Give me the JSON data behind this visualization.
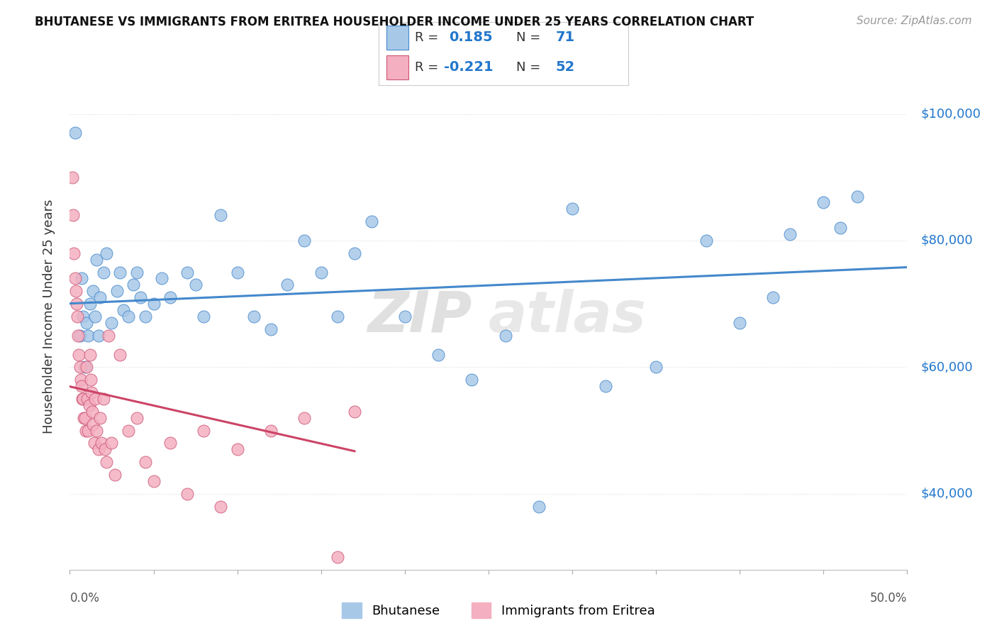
{
  "title": "BHUTANESE VS IMMIGRANTS FROM ERITREA HOUSEHOLDER INCOME UNDER 25 YEARS CORRELATION CHART",
  "source": "Source: ZipAtlas.com",
  "ylabel": "Householder Income Under 25 years",
  "watermark_zip": "ZIP",
  "watermark_atlas": "atlas",
  "xlim": [
    0.0,
    50.0
  ],
  "ylim": [
    28000,
    108000
  ],
  "yticks": [
    40000,
    60000,
    80000,
    100000
  ],
  "ytick_labels": [
    "$40,000",
    "$60,000",
    "$80,000",
    "$100,000"
  ],
  "bhutanese_color": "#a8c8e8",
  "eritrea_color": "#f4afc0",
  "trend_blue": "#4488cc",
  "trend_pink": "#cc4466",
  "trend_pink_dash": "#e8a0b0",
  "bhutanese_R": 0.185,
  "eritrea_R": -0.221,
  "bhutanese_x": [
    0.3,
    0.6,
    0.7,
    0.8,
    0.9,
    1.0,
    1.1,
    1.2,
    1.4,
    1.5,
    1.6,
    1.7,
    1.8,
    2.0,
    2.2,
    2.5,
    2.8,
    3.0,
    3.2,
    3.5,
    3.8,
    4.0,
    4.2,
    4.5,
    5.0,
    5.5,
    6.0,
    7.0,
    7.5,
    8.0,
    9.0,
    10.0,
    11.0,
    12.0,
    13.0,
    14.0,
    15.0,
    16.0,
    17.0,
    18.0,
    20.0,
    22.0,
    24.0,
    26.0,
    28.0,
    30.0,
    32.0,
    35.0,
    38.0,
    40.0,
    42.0,
    43.0,
    45.0,
    46.0,
    47.0
  ],
  "bhutanese_y": [
    97000,
    65000,
    74000,
    68000,
    60000,
    67000,
    65000,
    70000,
    72000,
    68000,
    77000,
    65000,
    71000,
    75000,
    78000,
    67000,
    72000,
    75000,
    69000,
    68000,
    73000,
    75000,
    71000,
    68000,
    70000,
    74000,
    71000,
    75000,
    73000,
    68000,
    84000,
    75000,
    68000,
    66000,
    73000,
    80000,
    75000,
    68000,
    78000,
    83000,
    68000,
    62000,
    58000,
    65000,
    38000,
    85000,
    57000,
    60000,
    80000,
    67000,
    71000,
    81000,
    86000,
    82000,
    87000
  ],
  "eritrea_x": [
    0.15,
    0.2,
    0.25,
    0.3,
    0.35,
    0.4,
    0.45,
    0.5,
    0.55,
    0.6,
    0.65,
    0.7,
    0.75,
    0.8,
    0.85,
    0.9,
    0.95,
    1.0,
    1.05,
    1.1,
    1.15,
    1.2,
    1.25,
    1.3,
    1.35,
    1.4,
    1.45,
    1.5,
    1.6,
    1.7,
    1.8,
    1.9,
    2.0,
    2.1,
    2.2,
    2.3,
    2.5,
    2.7,
    3.0,
    3.5,
    4.0,
    4.5,
    5.0,
    6.0,
    7.0,
    8.0,
    9.0,
    10.0,
    12.0,
    14.0,
    16.0,
    17.0
  ],
  "eritrea_y": [
    90000,
    84000,
    78000,
    74000,
    72000,
    70000,
    68000,
    65000,
    62000,
    60000,
    58000,
    57000,
    55000,
    55000,
    52000,
    52000,
    50000,
    60000,
    55000,
    50000,
    54000,
    62000,
    58000,
    56000,
    53000,
    51000,
    48000,
    55000,
    50000,
    47000,
    52000,
    48000,
    55000,
    47000,
    45000,
    65000,
    48000,
    43000,
    62000,
    50000,
    52000,
    45000,
    42000,
    48000,
    40000,
    50000,
    38000,
    47000,
    50000,
    52000,
    30000,
    53000
  ]
}
